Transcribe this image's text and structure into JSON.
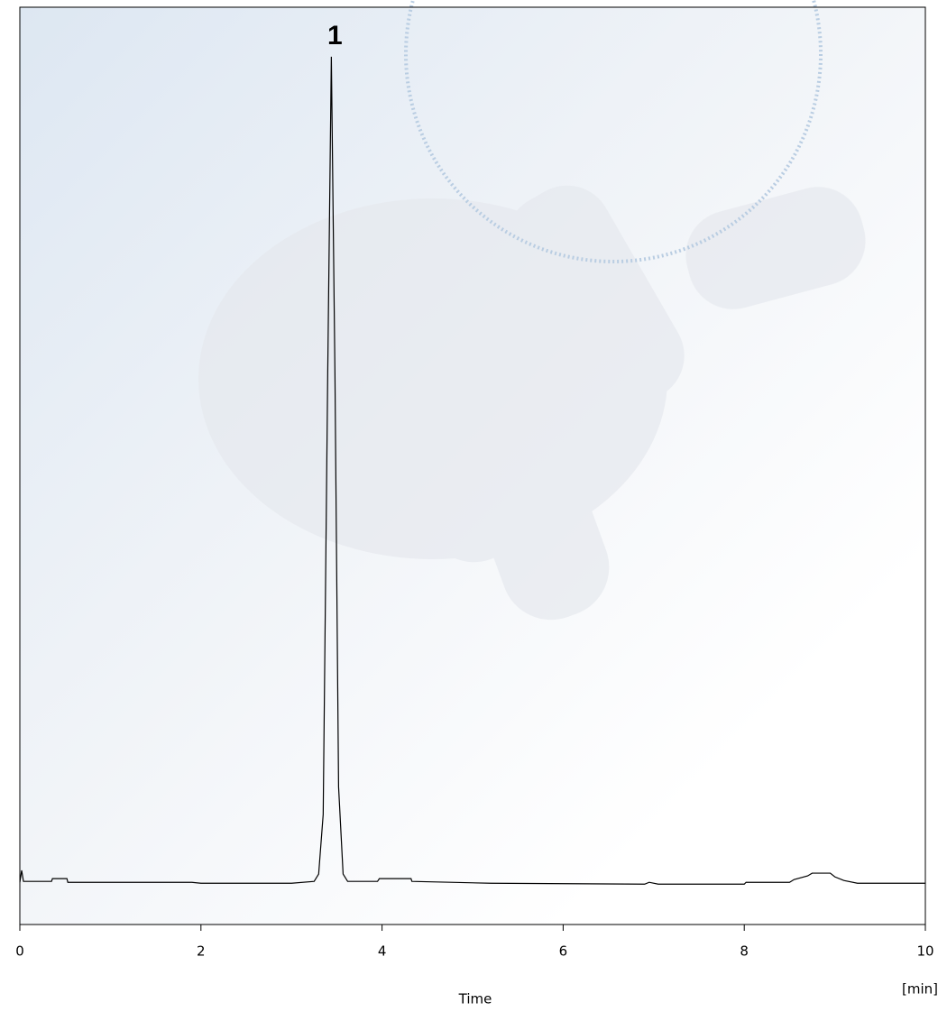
{
  "chart_data": {
    "type": "line",
    "annotation": "1",
    "x_label": "Time",
    "x_unit": "[min]",
    "color": "#000000",
    "xlim": [
      0,
      10
    ],
    "xticks": [
      0,
      2,
      4,
      6,
      8,
      10
    ],
    "ylim": [
      0,
      100
    ],
    "x": [
      0,
      0.02,
      0.04,
      0.35,
      0.36,
      0.52,
      0.53,
      1.9,
      2.0,
      3.0,
      3.25,
      3.3,
      3.35,
      3.4,
      3.44,
      3.48,
      3.52,
      3.57,
      3.62,
      3.95,
      3.97,
      4.32,
      4.33,
      5.2,
      6.9,
      6.95,
      7.05,
      8.0,
      8.02,
      8.5,
      8.55,
      8.7,
      8.75,
      8.95,
      9.0,
      9.1,
      9.25,
      10
    ],
    "values": [
      4.6,
      5.9,
      4.7,
      4.7,
      5.0,
      5.0,
      4.6,
      4.6,
      4.5,
      4.5,
      4.7,
      5.5,
      12,
      60,
      94.6,
      60,
      15,
      5.5,
      4.7,
      4.7,
      5.0,
      5.0,
      4.7,
      4.5,
      4.4,
      4.6,
      4.4,
      4.4,
      4.6,
      4.6,
      4.9,
      5.3,
      5.6,
      5.6,
      5.2,
      4.8,
      4.5,
      4.5
    ]
  }
}
